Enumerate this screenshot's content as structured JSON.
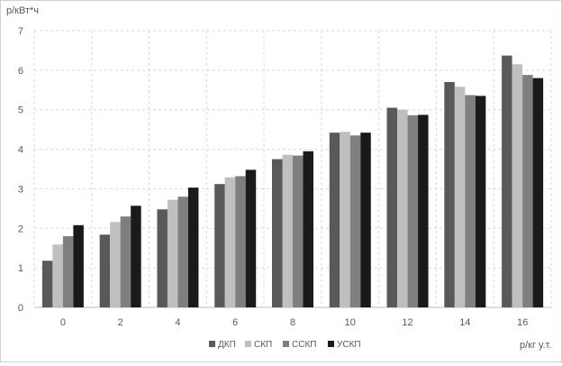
{
  "chart_data": {
    "type": "bar",
    "title": "",
    "ylabel": "р/кВт*ч",
    "xlabel": "р/кг у.т.",
    "categories": [
      "0",
      "2",
      "4",
      "6",
      "8",
      "10",
      "12",
      "14",
      "16"
    ],
    "ylim": [
      0,
      7
    ],
    "yticks": [
      "0",
      "1",
      "2",
      "3",
      "4",
      "5",
      "6",
      "7"
    ],
    "grid": true,
    "grid_style": "dashed",
    "legend_position": "bottom",
    "series": [
      {
        "name": "ДКП",
        "color": "#595959",
        "values": [
          1.18,
          1.84,
          2.48,
          3.12,
          3.75,
          4.42,
          5.05,
          5.7,
          6.37
        ]
      },
      {
        "name": "СКП",
        "color": "#bfbfbf",
        "values": [
          1.59,
          2.16,
          2.72,
          3.29,
          3.86,
          4.44,
          5.0,
          5.58,
          6.15
        ]
      },
      {
        "name": "ССКП",
        "color": "#7f7f7f",
        "values": [
          1.8,
          2.3,
          2.8,
          3.32,
          3.84,
          4.35,
          4.86,
          5.37,
          5.88
        ]
      },
      {
        "name": "УСКП",
        "color": "#1a1a1a",
        "values": [
          2.08,
          2.57,
          3.03,
          3.48,
          3.95,
          4.42,
          4.87,
          5.35,
          5.8
        ]
      }
    ]
  }
}
